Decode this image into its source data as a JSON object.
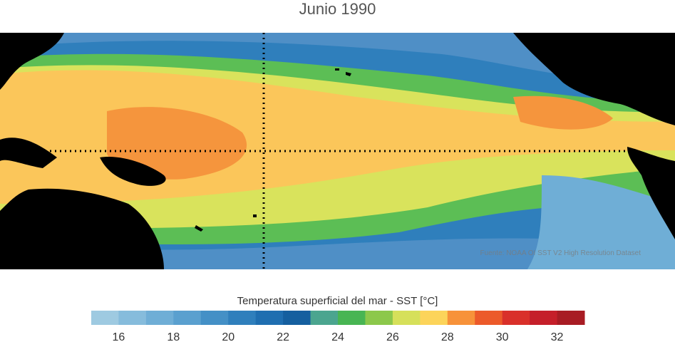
{
  "title": "Junio 1990",
  "credit": "Fuente: NOAA OI SST V2 High Resolution Dataset",
  "colorbar": {
    "label": "Temperatura superficial del mar - SST  [°C]",
    "tick_values": [
      16,
      18,
      20,
      22,
      24,
      26,
      28,
      30,
      32
    ],
    "min": 15,
    "max": 33,
    "band_step": 1,
    "colors": [
      "#9ecae1",
      "#86bcdc",
      "#6faed6",
      "#5aa0cf",
      "#4490c6",
      "#2f7fbc",
      "#1f6eb0",
      "#155f9f",
      "#4ba58f",
      "#48b553",
      "#8cc84b",
      "#d6e05a",
      "#fcd45a",
      "#f7923a",
      "#ec5a2a",
      "#d9302a",
      "#c51f2a",
      "#a81c24"
    ]
  },
  "map": {
    "land_color": "#000000",
    "reference_lines": "dotted",
    "colors": {
      "cold": "#4f8fc6",
      "cool": "#2f7fbc",
      "mid": "#5cbe55",
      "warm": "#d9e35c",
      "hot": "#fbc65a",
      "very_hot": "#f5953d"
    }
  }
}
